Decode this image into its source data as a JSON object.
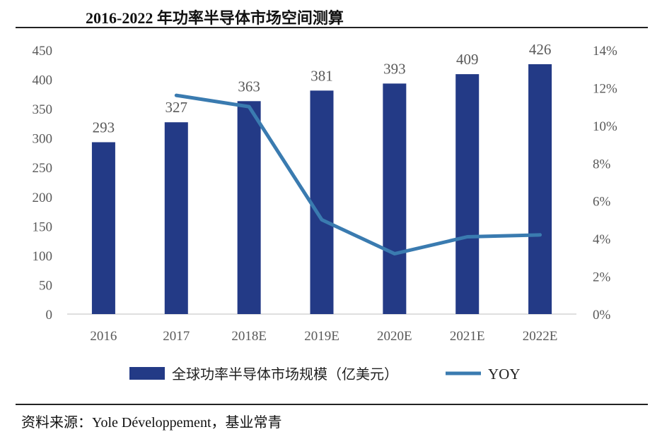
{
  "title": "2016-2022 年功率半导体市场空间测算",
  "source": "资料来源：Yole Développement，基业常青",
  "colors": {
    "bar": "#233a86",
    "line": "#3a7bb0",
    "axis_text": "#595959",
    "axis_line": "#bfbfbf"
  },
  "chart_data": {
    "type": "bar",
    "categories": [
      "2016",
      "2017",
      "2018E",
      "2019E",
      "2020E",
      "2021E",
      "2022E"
    ],
    "series": [
      {
        "name": "全球功率半导体市场规模（亿美元）",
        "type": "bar",
        "axis": "left",
        "values": [
          293,
          327,
          363,
          381,
          393,
          409,
          426
        ],
        "data_labels": [
          "293",
          "327",
          "363",
          "381",
          "393",
          "409",
          "426"
        ]
      },
      {
        "name": "YOY",
        "type": "line",
        "axis": "right",
        "values": [
          null,
          0.116,
          0.11,
          0.05,
          0.032,
          0.041,
          0.042
        ]
      }
    ],
    "y_left": {
      "range": [
        0,
        450
      ],
      "ticks": [
        "0",
        "50",
        "100",
        "150",
        "200",
        "250",
        "300",
        "350",
        "400",
        "450"
      ]
    },
    "y_right": {
      "range": [
        0,
        0.14
      ],
      "ticks": [
        "0%",
        "2%",
        "4%",
        "6%",
        "8%",
        "10%",
        "12%",
        "14%"
      ]
    },
    "grid": false,
    "legend": {
      "position": "bottom",
      "items": [
        "全球功率半导体市场规模（亿美元）",
        "YOY"
      ]
    }
  }
}
